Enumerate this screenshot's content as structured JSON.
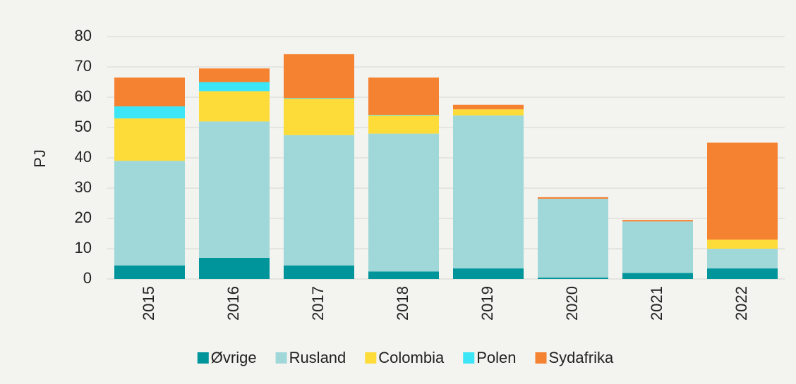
{
  "chart_data": {
    "type": "stacked_bar",
    "y_label": "PJ",
    "categories": [
      "2015",
      "2016",
      "2017",
      "2018",
      "2019",
      "2020",
      "2021",
      "2022"
    ],
    "series": [
      {
        "name": "Øvrige",
        "color": "#00959a",
        "values": [
          4.5,
          7,
          4.5,
          2.5,
          3.5,
          0.5,
          2,
          3.5
        ]
      },
      {
        "name": "Rusland",
        "color": "#a0d8da",
        "values": [
          34.5,
          45,
          43,
          45.5,
          50.5,
          26,
          17,
          6.5
        ]
      },
      {
        "name": "Colombia",
        "color": "#fddc3a",
        "values": [
          14,
          10,
          12,
          6,
          2,
          0,
          0,
          3
        ]
      },
      {
        "name": "Polen",
        "color": "#3de6f6",
        "values": [
          4,
          3,
          0.2,
          0.2,
          0,
          0,
          0,
          0
        ]
      },
      {
        "name": "Sydafrika",
        "color": "#f58231",
        "values": [
          9.5,
          4.5,
          14.5,
          12.3,
          1.5,
          0.5,
          0.5,
          32
        ]
      }
    ],
    "ylim": [
      0,
      80
    ],
    "yticks": [
      0,
      10,
      20,
      30,
      40,
      50,
      60,
      70,
      80
    ],
    "grid": true
  }
}
